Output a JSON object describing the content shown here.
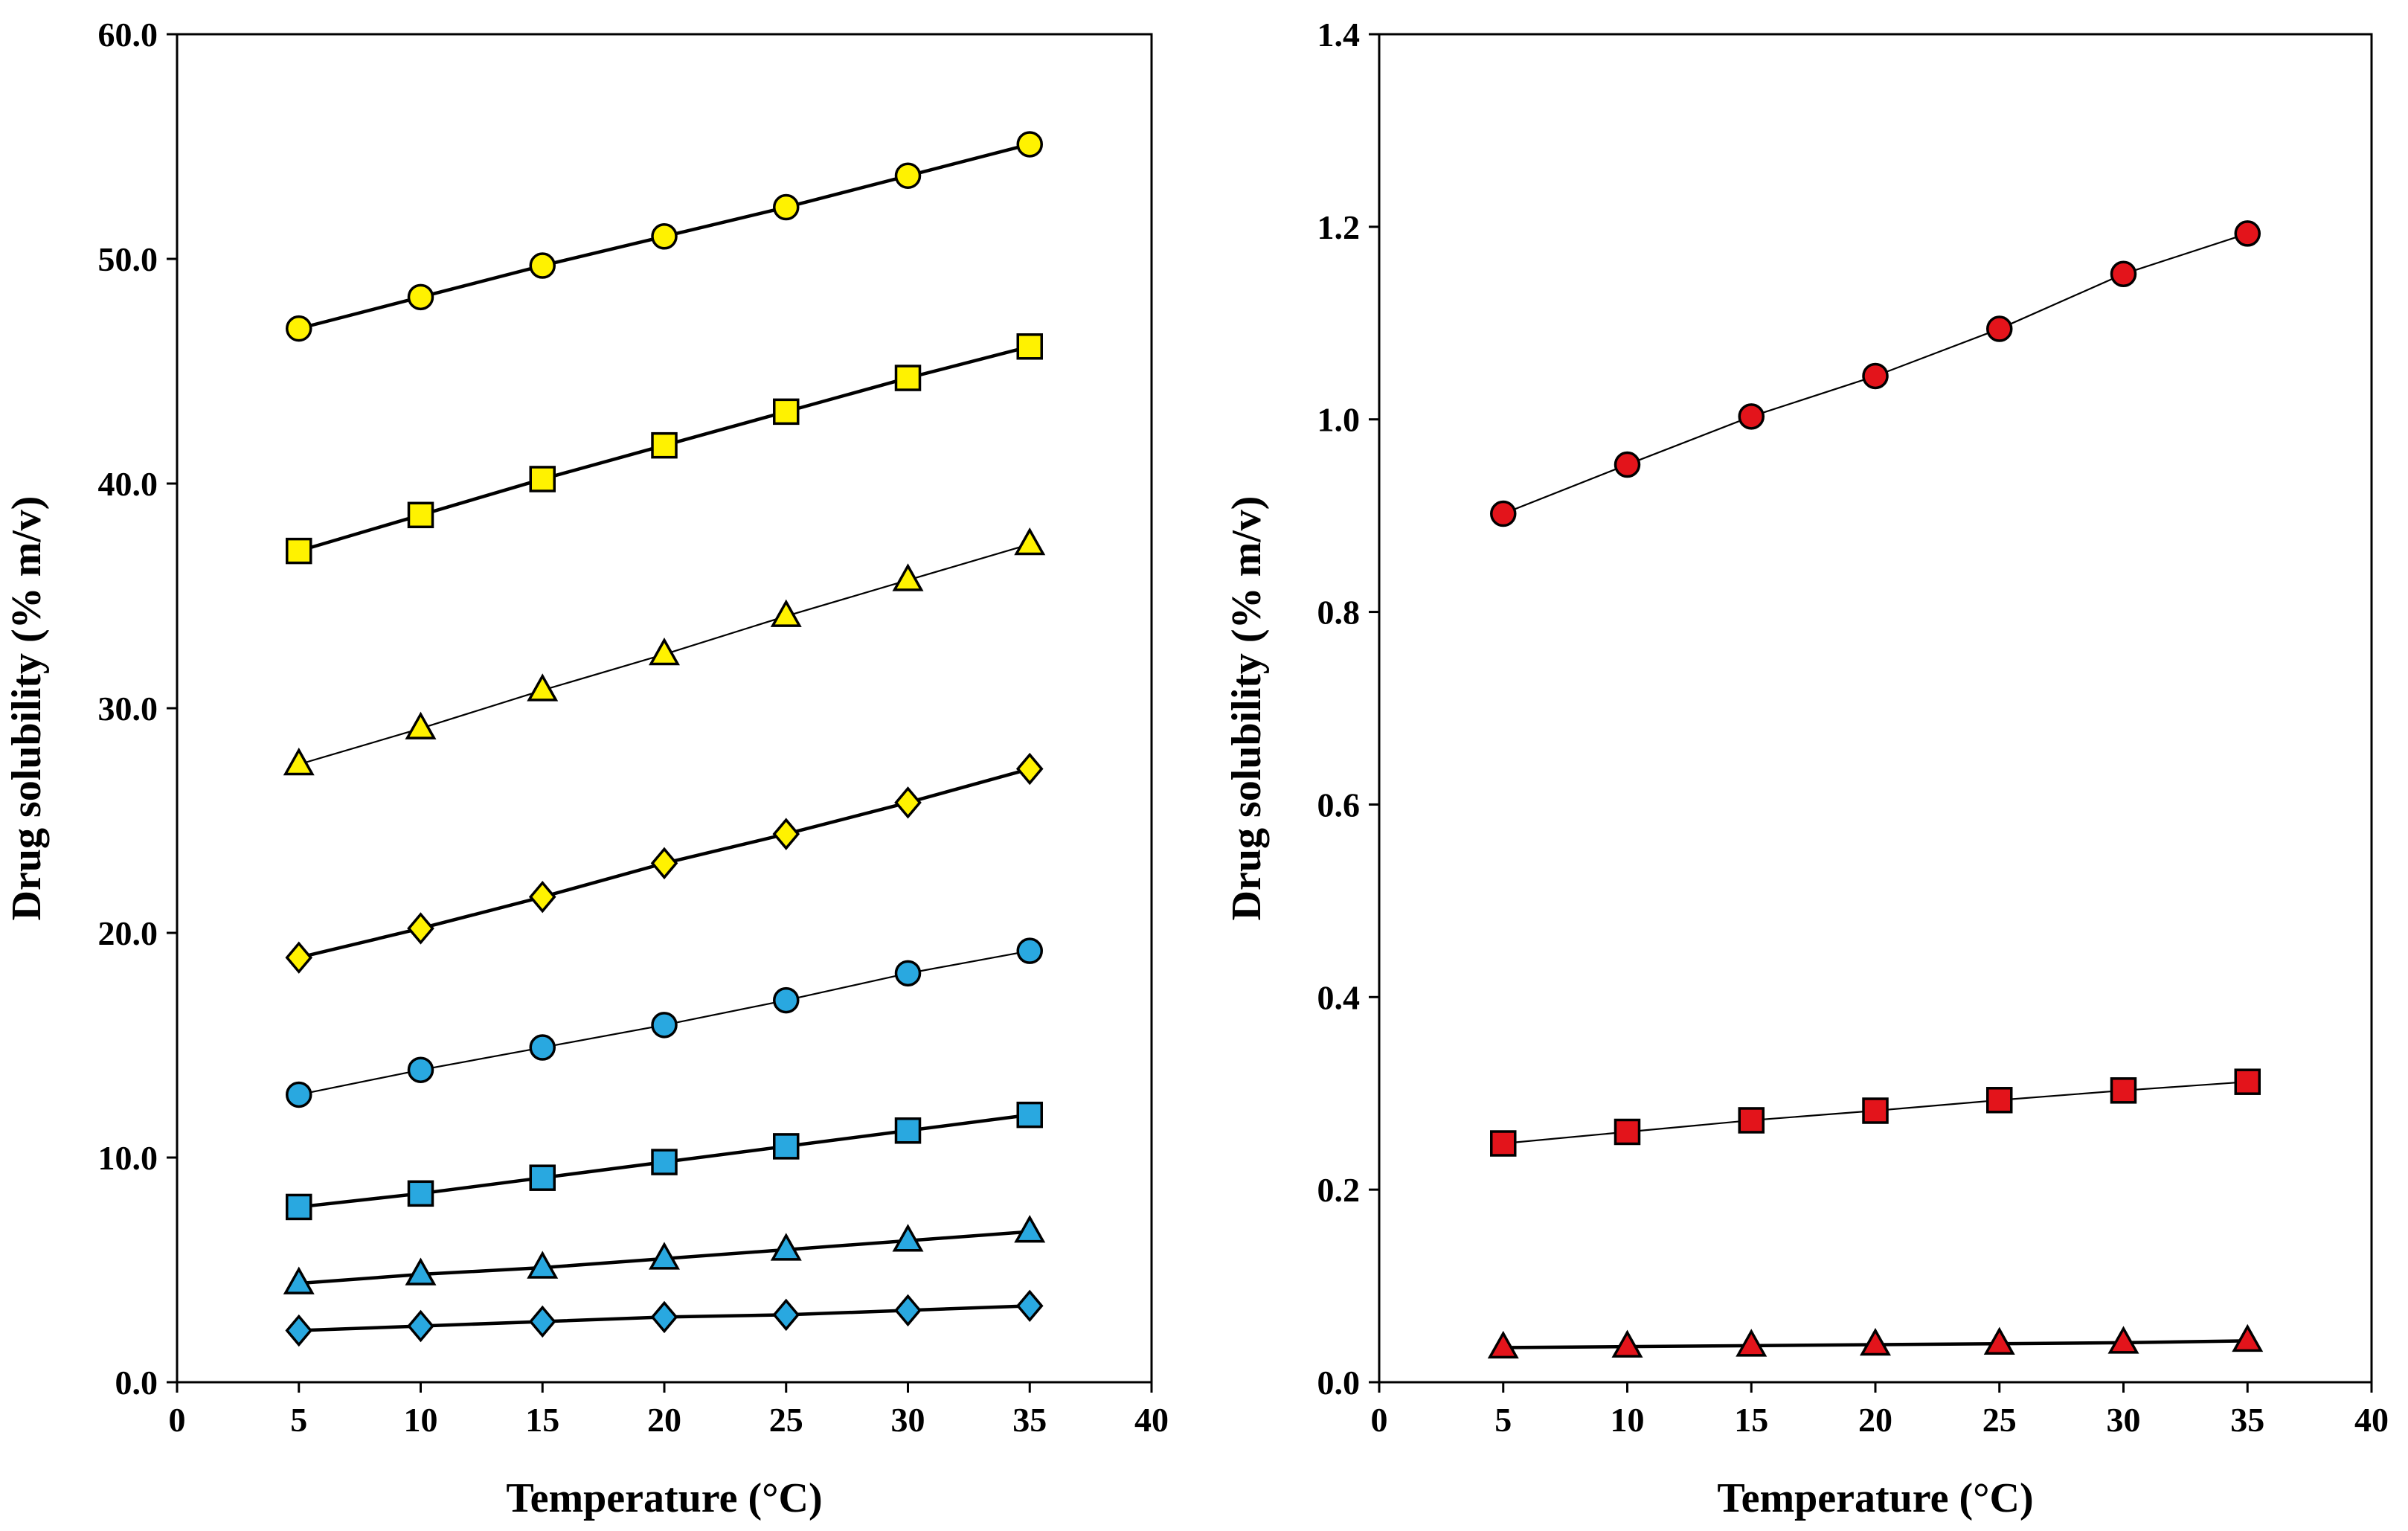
{
  "chart_data": [
    {
      "type": "line",
      "xlabel": "Temperature (°C)",
      "ylabel": "Drug solubility (% m/v)",
      "xlim": [
        0,
        40
      ],
      "ylim": [
        0,
        60
      ],
      "x_ticks": [
        0,
        5,
        10,
        15,
        20,
        25,
        30,
        35,
        40
      ],
      "y_ticks": [
        0,
        10,
        20,
        30,
        40,
        50,
        60
      ],
      "y_tick_decimals": 1,
      "grid": false,
      "x": [
        5,
        10,
        15,
        20,
        25,
        30,
        35
      ],
      "series": [
        {
          "name": "yellow-circle",
          "marker": "circle",
          "color": "#FFF200",
          "line_weight": "thick",
          "values": [
            46.9,
            48.3,
            49.7,
            51.0,
            52.3,
            53.7,
            55.1
          ]
        },
        {
          "name": "yellow-square",
          "marker": "square",
          "color": "#FFF200",
          "line_weight": "thick",
          "values": [
            37.0,
            38.6,
            40.2,
            41.7,
            43.2,
            44.7,
            46.1
          ]
        },
        {
          "name": "yellow-triangle",
          "marker": "triangle",
          "color": "#FFF200",
          "line_weight": "thin",
          "values": [
            27.5,
            29.1,
            30.8,
            32.4,
            34.1,
            35.7,
            37.3
          ]
        },
        {
          "name": "yellow-diamond",
          "marker": "diamond",
          "color": "#FFF200",
          "line_weight": "thick",
          "values": [
            18.9,
            20.2,
            21.6,
            23.1,
            24.4,
            25.8,
            27.3
          ]
        },
        {
          "name": "blue-circle",
          "marker": "circle",
          "color": "#29A8E0",
          "line_weight": "thin",
          "values": [
            12.8,
            13.9,
            14.9,
            15.9,
            17.0,
            18.2,
            19.2
          ]
        },
        {
          "name": "blue-square",
          "marker": "square",
          "color": "#29A8E0",
          "line_weight": "thick",
          "values": [
            7.8,
            8.4,
            9.1,
            9.8,
            10.5,
            11.2,
            11.9
          ]
        },
        {
          "name": "blue-triangle",
          "marker": "triangle",
          "color": "#29A8E0",
          "line_weight": "thick",
          "values": [
            4.4,
            4.8,
            5.1,
            5.5,
            5.9,
            6.3,
            6.7
          ]
        },
        {
          "name": "blue-diamond",
          "marker": "diamond",
          "color": "#29A8E0",
          "line_weight": "thick",
          "values": [
            2.3,
            2.5,
            2.7,
            2.9,
            3.0,
            3.2,
            3.4
          ]
        }
      ]
    },
    {
      "type": "line",
      "xlabel": "Temperature (°C)",
      "ylabel": "Drug solubility (% m/v)",
      "xlim": [
        0,
        40
      ],
      "ylim": [
        0,
        1.4
      ],
      "x_ticks": [
        0,
        5,
        10,
        15,
        20,
        25,
        30,
        35,
        40
      ],
      "y_ticks": [
        0,
        0.2,
        0.4,
        0.6,
        0.8,
        1.0,
        1.2,
        1.4
      ],
      "y_tick_decimals": 1,
      "grid": false,
      "x": [
        5,
        10,
        15,
        20,
        25,
        30,
        35
      ],
      "series": [
        {
          "name": "red-circle",
          "marker": "circle",
          "color": "#E3141B",
          "line_weight": "thin",
          "values": [
            0.902,
            0.953,
            1.003,
            1.045,
            1.094,
            1.151,
            1.193
          ]
        },
        {
          "name": "red-square",
          "marker": "square",
          "color": "#E3141B",
          "line_weight": "thin",
          "values": [
            0.248,
            0.26,
            0.272,
            0.282,
            0.293,
            0.303,
            0.312
          ]
        },
        {
          "name": "red-triangle",
          "marker": "triangle",
          "color": "#E3141B",
          "line_weight": "thick",
          "values": [
            0.036,
            0.037,
            0.038,
            0.039,
            0.04,
            0.041,
            0.043
          ]
        }
      ]
    }
  ]
}
